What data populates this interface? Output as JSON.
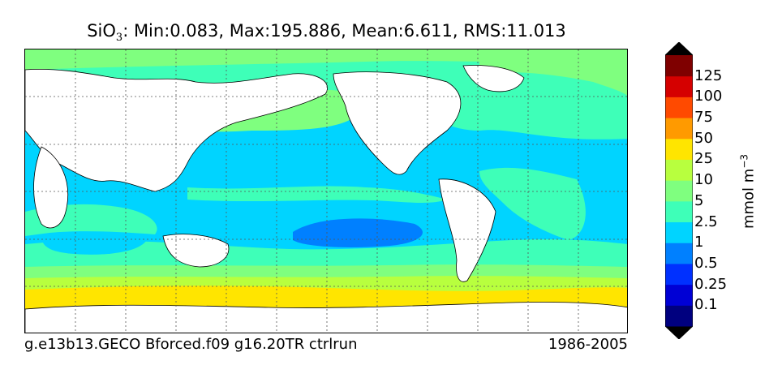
{
  "title": {
    "species": "SiO",
    "subscript": "3",
    "stats": ": Min:0.083, Max:195.886, Mean:6.611, RMS:11.013"
  },
  "footer": {
    "run_name": "g.e13b13.GECO Bforced.f09 g16.20TR ctrlrun",
    "period": "1986-2005"
  },
  "colorbar": {
    "units_base": "mmol m",
    "units_exp": "−3",
    "extend": "both",
    "levels": [
      "0.1",
      "0.25",
      "0.5",
      "1",
      "2.5",
      "5",
      "10",
      "25",
      "50",
      "75",
      "100",
      "125"
    ],
    "colors": [
      "#00007f",
      "#0000d5",
      "#0030ff",
      "#0080ff",
      "#00d4ff",
      "#3effb8",
      "#7fff7f",
      "#b8ff3e",
      "#ffe500",
      "#ff9a00",
      "#ff4a00",
      "#d50000",
      "#7f0000"
    ],
    "extend_color": "#000000"
  },
  "map": {
    "land_color": "#ffffff",
    "grid_style": "dotted",
    "projection": "cylindrical"
  }
}
